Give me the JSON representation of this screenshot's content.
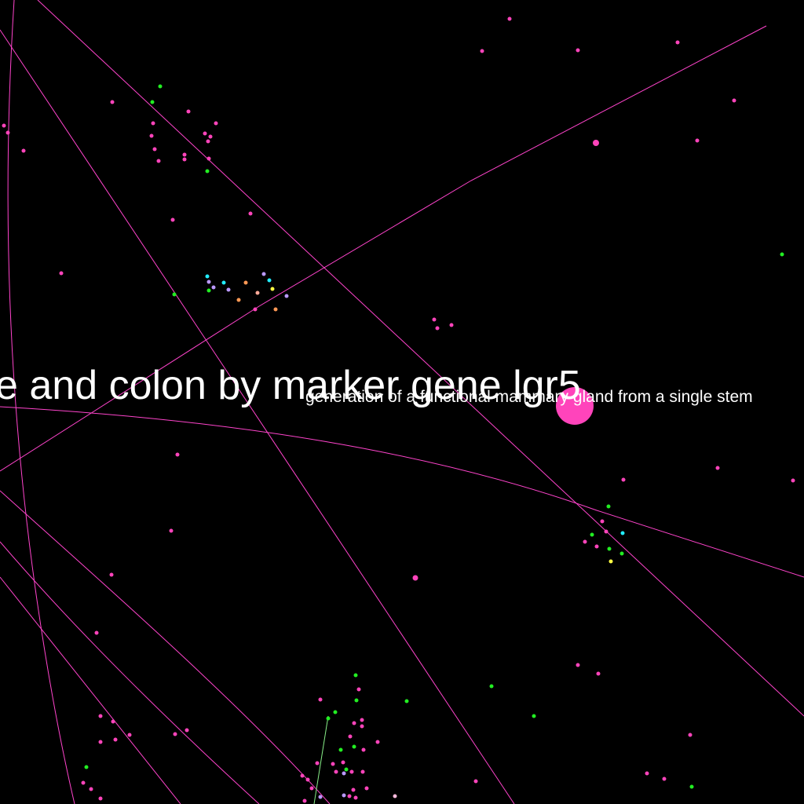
{
  "colors": {
    "background": "#000000",
    "edge": "#ff44cc",
    "node": "#ff44bb",
    "node_green": "#22ee22",
    "node_cyan": "#22eeff",
    "node_violet": "#bb99ff",
    "node_orange": "#ff9955",
    "node_yellow": "#ffff44",
    "node_peach": "#ffaa99",
    "node_pale_pink": "#ffbbdd",
    "label": "#ffffff"
  },
  "labels": {
    "main": "e and colon by marker gene lgr5",
    "secondary": "generation of a functional mammary gland from a single stem"
  }
}
